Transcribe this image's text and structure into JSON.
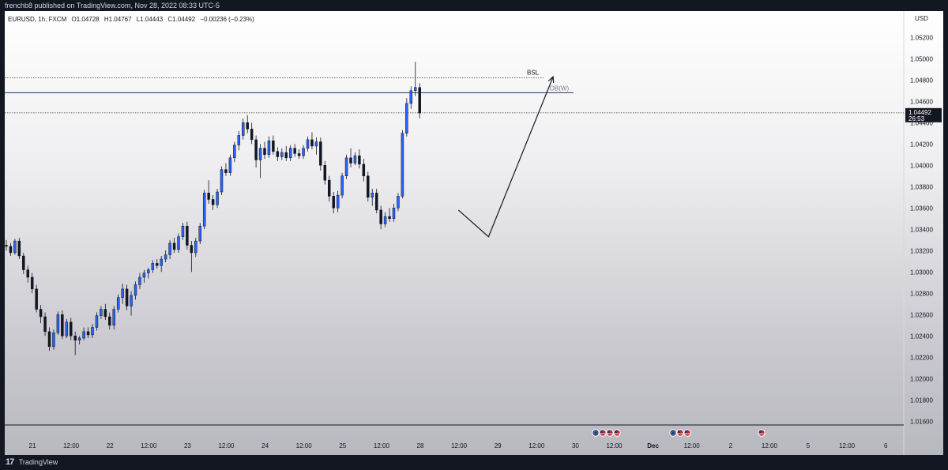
{
  "header": {
    "publisher_line": "frenchb8 published on TradingView.com, Nov 28, 2022 08:33 UTC-5"
  },
  "legend": {
    "symbol": "EURUSD, 1h, FXCM",
    "open": "O1.04728",
    "high": "H1.04767",
    "low": "L1.04443",
    "close": "C1.04492",
    "change": "−0.00236 (−0.23%)"
  },
  "footer": {
    "brand": "TradingView",
    "logo_text": "17"
  },
  "chart_data": {
    "type": "candlestick",
    "symbol": "EURUSD",
    "timeframe": "1h",
    "currency": "USD",
    "ylim": [
      1.0155,
      1.0535
    ],
    "y_ticks": [
      "1.05200",
      "1.05000",
      "1.04800",
      "1.04600",
      "1.04400",
      "1.04200",
      "1.04000",
      "1.03800",
      "1.03600",
      "1.03400",
      "1.03200",
      "1.03000",
      "1.02800",
      "1.02600",
      "1.02400",
      "1.02200",
      "1.02000",
      "1.01800",
      "1.01600"
    ],
    "x_ticks": [
      "21",
      "12:00",
      "22",
      "12:00",
      "23",
      "12:00",
      "24",
      "12:00",
      "25",
      "12:00",
      "28",
      "12:00",
      "29",
      "12:00",
      "30",
      "12:00",
      "Dec",
      "12:00",
      "2",
      "12:00",
      "5",
      "12:00",
      "6"
    ],
    "x_tick_bold": [
      16
    ],
    "colors": {
      "up": "#2962ff",
      "down": "#131722",
      "line": "#131722",
      "axis_text": "#131722"
    },
    "last_price": {
      "value": 1.04492,
      "label": "1.04492",
      "countdown": "26:53"
    },
    "levels": [
      {
        "name": "BSL",
        "price": 1.0482,
        "style": "dotted",
        "label": "BSL"
      },
      {
        "name": "OB(W)",
        "price": 1.0468,
        "style": "solid",
        "label": "-OB(W)"
      }
    ],
    "projection": [
      [
        1.0358,
        105
      ],
      [
        1.0333,
        112
      ],
      [
        1.0483,
        127
      ]
    ],
    "event_markers": {
      "groups": [
        [
          "eu",
          "us",
          "us",
          "us"
        ],
        [
          "eu",
          "us",
          "us"
        ],
        [
          "us"
        ]
      ]
    },
    "candles": [
      [
        1.0325,
        1.033,
        1.032,
        1.0324
      ],
      [
        1.0324,
        1.0327,
        1.0315,
        1.0318
      ],
      [
        1.0318,
        1.0331,
        1.0316,
        1.0329
      ],
      [
        1.0329,
        1.0332,
        1.0312,
        1.0315
      ],
      [
        1.0315,
        1.0318,
        1.0298,
        1.0302
      ],
      [
        1.0302,
        1.0306,
        1.029,
        1.0295
      ],
      [
        1.0295,
        1.0299,
        1.028,
        1.0284
      ],
      [
        1.0284,
        1.0288,
        1.0262,
        1.0265
      ],
      [
        1.0265,
        1.0269,
        1.0252,
        1.0258
      ],
      [
        1.0258,
        1.0262,
        1.024,
        1.0244
      ],
      [
        1.0244,
        1.0248,
        1.0226,
        1.023
      ],
      [
        1.023,
        1.0246,
        1.0227,
        1.0243
      ],
      [
        1.0243,
        1.0263,
        1.0241,
        1.026
      ],
      [
        1.026,
        1.0264,
        1.0237,
        1.024
      ],
      [
        1.024,
        1.0256,
        1.0238,
        1.0253
      ],
      [
        1.0253,
        1.0257,
        1.0236,
        1.024
      ],
      [
        1.024,
        1.0244,
        1.0222,
        1.0236
      ],
      [
        1.0236,
        1.024,
        1.0232,
        1.0238
      ],
      [
        1.0238,
        1.0248,
        1.0236,
        1.0244
      ],
      [
        1.0244,
        1.0248,
        1.0238,
        1.0241
      ],
      [
        1.0241,
        1.0251,
        1.0238,
        1.0248
      ],
      [
        1.0248,
        1.0262,
        1.0245,
        1.0259
      ],
      [
        1.0259,
        1.0268,
        1.0256,
        1.0265
      ],
      [
        1.0265,
        1.027,
        1.0255,
        1.0258
      ],
      [
        1.0258,
        1.0262,
        1.0246,
        1.025
      ],
      [
        1.025,
        1.0268,
        1.0246,
        1.0265
      ],
      [
        1.0265,
        1.0279,
        1.0262,
        1.0276
      ],
      [
        1.0276,
        1.0289,
        1.027,
        1.0284
      ],
      [
        1.0284,
        1.0288,
        1.0264,
        1.0268
      ],
      [
        1.0268,
        1.0282,
        1.0259,
        1.0278
      ],
      [
        1.0278,
        1.0291,
        1.0274,
        1.0288
      ],
      [
        1.0288,
        1.0299,
        1.0284,
        1.0295
      ],
      [
        1.0295,
        1.0302,
        1.029,
        1.0299
      ],
      [
        1.0299,
        1.0304,
        1.0294,
        1.0302
      ],
      [
        1.0302,
        1.0311,
        1.0299,
        1.0308
      ],
      [
        1.0308,
        1.0312,
        1.0303,
        1.0306
      ],
      [
        1.0306,
        1.0315,
        1.03,
        1.0312
      ],
      [
        1.0312,
        1.032,
        1.0309,
        1.0316
      ],
      [
        1.0316,
        1.033,
        1.0312,
        1.0327
      ],
      [
        1.0327,
        1.0332,
        1.0318,
        1.0321
      ],
      [
        1.0321,
        1.0336,
        1.0318,
        1.0333
      ],
      [
        1.0333,
        1.0346,
        1.033,
        1.0343
      ],
      [
        1.0343,
        1.0347,
        1.0321,
        1.0325
      ],
      [
        1.0325,
        1.0329,
        1.03,
        1.0318
      ],
      [
        1.0318,
        1.0332,
        1.0314,
        1.0329
      ],
      [
        1.0329,
        1.0346,
        1.0326,
        1.0343
      ],
      [
        1.0343,
        1.0377,
        1.034,
        1.0374
      ],
      [
        1.0374,
        1.0386,
        1.0364,
        1.0368
      ],
      [
        1.0368,
        1.0372,
        1.0358,
        1.0363
      ],
      [
        1.0363,
        1.0378,
        1.036,
        1.0375
      ],
      [
        1.0375,
        1.0399,
        1.0372,
        1.0396
      ],
      [
        1.0396,
        1.0402,
        1.039,
        1.0393
      ],
      [
        1.0393,
        1.041,
        1.039,
        1.0407
      ],
      [
        1.0407,
        1.0422,
        1.0403,
        1.0419
      ],
      [
        1.0419,
        1.0432,
        1.0414,
        1.0428
      ],
      [
        1.0428,
        1.0444,
        1.0424,
        1.044
      ],
      [
        1.044,
        1.0447,
        1.043,
        1.0434
      ],
      [
        1.0434,
        1.044,
        1.042,
        1.0424
      ],
      [
        1.0424,
        1.0428,
        1.0398,
        1.0405
      ],
      [
        1.0405,
        1.042,
        1.0388,
        1.0416
      ],
      [
        1.0416,
        1.0422,
        1.0406,
        1.041
      ],
      [
        1.041,
        1.0427,
        1.0407,
        1.0423
      ],
      [
        1.0423,
        1.0428,
        1.041,
        1.0413
      ],
      [
        1.0413,
        1.0417,
        1.0404,
        1.0408
      ],
      [
        1.0408,
        1.0416,
        1.0405,
        1.0412
      ],
      [
        1.0412,
        1.0418,
        1.0404,
        1.0407
      ],
      [
        1.0407,
        1.0419,
        1.0404,
        1.0416
      ],
      [
        1.0416,
        1.042,
        1.0408,
        1.0411
      ],
      [
        1.0411,
        1.0415,
        1.0406,
        1.0409
      ],
      [
        1.0409,
        1.0419,
        1.0406,
        1.0416
      ],
      [
        1.0416,
        1.0427,
        1.0413,
        1.0424
      ],
      [
        1.0424,
        1.0431,
        1.0415,
        1.0418
      ],
      [
        1.0418,
        1.0426,
        1.041,
        1.0422
      ],
      [
        1.0422,
        1.0426,
        1.0395,
        1.04
      ],
      [
        1.04,
        1.0404,
        1.0382,
        1.0386
      ],
      [
        1.0386,
        1.039,
        1.0366,
        1.0371
      ],
      [
        1.0371,
        1.0375,
        1.0355,
        1.036
      ],
      [
        1.036,
        1.0376,
        1.0356,
        1.0372
      ],
      [
        1.0372,
        1.0393,
        1.0369,
        1.039
      ],
      [
        1.039,
        1.041,
        1.0387,
        1.0407
      ],
      [
        1.0407,
        1.0416,
        1.0398,
        1.0402
      ],
      [
        1.0402,
        1.0412,
        1.04,
        1.0409
      ],
      [
        1.0409,
        1.0415,
        1.0397,
        1.0401
      ],
      [
        1.0401,
        1.0406,
        1.0385,
        1.039
      ],
      [
        1.039,
        1.0394,
        1.0366,
        1.037
      ],
      [
        1.037,
        1.0378,
        1.0362,
        1.0374
      ],
      [
        1.0374,
        1.0378,
        1.0355,
        1.0358
      ],
      [
        1.0358,
        1.0362,
        1.034,
        1.0345
      ],
      [
        1.0345,
        1.0356,
        1.0342,
        1.0352
      ],
      [
        1.0352,
        1.036,
        1.0347,
        1.035
      ],
      [
        1.035,
        1.0364,
        1.0347,
        1.036
      ],
      [
        1.036,
        1.0374,
        1.0357,
        1.0371
      ],
      [
        1.0371,
        1.0433,
        1.0369,
        1.043
      ],
      [
        1.043,
        1.0463,
        1.0427,
        1.0458
      ],
      [
        1.0458,
        1.0474,
        1.0453,
        1.047
      ],
      [
        1.047,
        1.0497,
        1.0465,
        1.0473
      ],
      [
        1.0473,
        1.0477,
        1.0444,
        1.0449
      ]
    ]
  }
}
